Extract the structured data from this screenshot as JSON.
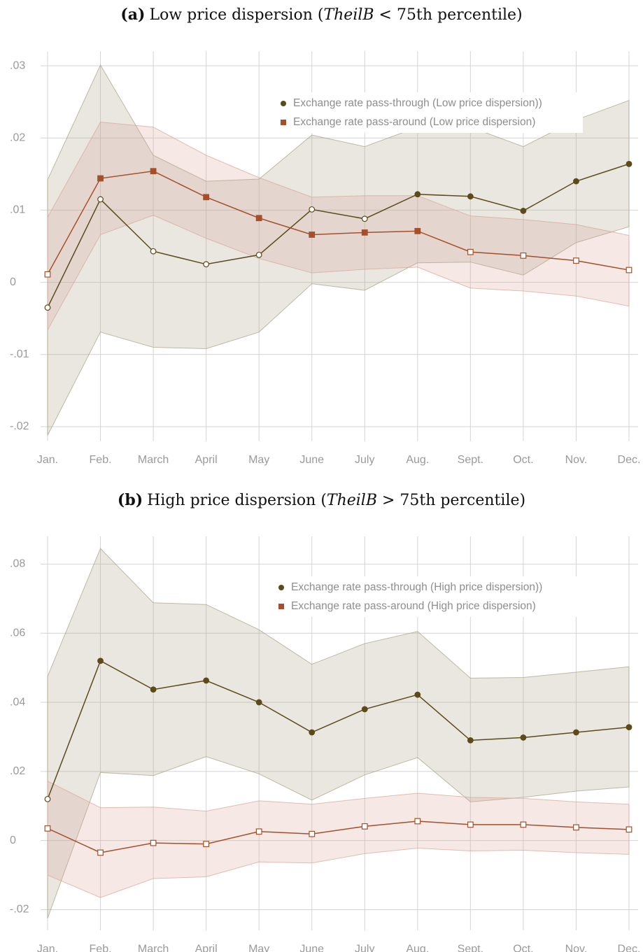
{
  "chart_data": [
    {
      "type": "line",
      "panel_label": "(a)",
      "title_parts": [
        "Low price dispersion (",
        "TheilB",
        " < 75th percentile)"
      ],
      "categories": [
        "Jan.",
        "Feb.",
        "March",
        "April",
        "May",
        "June",
        "July",
        "Aug.",
        "Sept.",
        "Oct.",
        "Nov.",
        "Dec."
      ],
      "ylim": [
        -0.022,
        0.032
      ],
      "yticks": [
        {
          "value": -0.02,
          "label": "-.02"
        },
        {
          "value": -0.01,
          "label": "-.01"
        },
        0,
        {
          "value": 0.01,
          "label": ".01"
        },
        {
          "value": 0.02,
          "label": ".02"
        },
        {
          "value": 0.03,
          "label": ".03"
        }
      ],
      "grid": true,
      "legend": "upper right",
      "series": [
        {
          "name": "Exchange rate pass-through (Low price dispersion))",
          "marker": "circle",
          "color": "#5c4a1a",
          "band_color": "#a89f85",
          "values": [
            -0.0035,
            0.0115,
            0.0043,
            0.0025,
            0.0038,
            0.0101,
            0.0088,
            0.0122,
            0.0119,
            0.0099,
            0.014,
            0.0164
          ],
          "upper": [
            0.0142,
            0.0301,
            0.0176,
            0.014,
            0.0143,
            0.0204,
            0.0188,
            0.0215,
            0.0215,
            0.0188,
            0.0225,
            0.0252
          ],
          "lower": [
            -0.0212,
            -0.0069,
            -0.009,
            -0.0092,
            -0.0069,
            -0.0002,
            -0.0011,
            0.0027,
            0.0028,
            0.001,
            0.0055,
            0.0077
          ],
          "filled": [
            false,
            false,
            false,
            false,
            false,
            false,
            false,
            true,
            true,
            true,
            true,
            true
          ]
        },
        {
          "name": "Exchange rate pass-around (Low price dispersion)",
          "marker": "square",
          "color": "#a5502a",
          "band_color": "#d9a596",
          "values": [
            0.0011,
            0.0144,
            0.0154,
            0.0118,
            0.0089,
            0.0066,
            0.0069,
            0.0071,
            0.0042,
            0.0037,
            0.003,
            0.0017
          ],
          "upper": [
            0.009,
            0.0222,
            0.0215,
            0.0176,
            0.0145,
            0.0118,
            0.012,
            0.012,
            0.0092,
            0.0087,
            0.008,
            0.0065
          ],
          "lower": [
            -0.0066,
            0.0066,
            0.0093,
            0.0061,
            0.0033,
            0.0013,
            0.0018,
            0.0021,
            -0.0008,
            -0.0012,
            -0.0019,
            -0.0033
          ],
          "filled": [
            false,
            true,
            true,
            true,
            true,
            true,
            true,
            true,
            false,
            false,
            false,
            false
          ]
        }
      ]
    },
    {
      "type": "line",
      "panel_label": "(b)",
      "title_parts": [
        "High price dispersion (",
        "TheilB",
        " > 75th percentile)"
      ],
      "categories": [
        "Jan.",
        "Feb.",
        "March",
        "April",
        "May",
        "June",
        "July",
        "Aug.",
        "Sept.",
        "Oct.",
        "Nov.",
        "Dec."
      ],
      "ylim": [
        -0.026,
        0.088
      ],
      "yticks": [
        {
          "value": -0.02,
          "label": "-.02"
        },
        0,
        {
          "value": 0.02,
          "label": ".02"
        },
        {
          "value": 0.04,
          "label": ".04"
        },
        {
          "value": 0.06,
          "label": ".06"
        },
        {
          "value": 0.08,
          "label": ".08"
        }
      ],
      "grid": true,
      "legend": "upper right",
      "series": [
        {
          "name": "Exchange rate pass-through (High price dispersion))",
          "marker": "circle",
          "color": "#5c4a1a",
          "band_color": "#a89f85",
          "values": [
            0.012,
            0.052,
            0.0437,
            0.0463,
            0.04,
            0.0313,
            0.038,
            0.0422,
            0.029,
            0.0298,
            0.0313,
            0.0328
          ],
          "upper": [
            0.0475,
            0.0845,
            0.0688,
            0.0683,
            0.061,
            0.051,
            0.057,
            0.0605,
            0.047,
            0.0472,
            0.0487,
            0.0503
          ],
          "lower": [
            -0.0225,
            0.0197,
            0.0188,
            0.0243,
            0.0193,
            0.0117,
            0.019,
            0.024,
            0.0112,
            0.0125,
            0.0143,
            0.0155
          ],
          "filled": [
            false,
            true,
            true,
            true,
            true,
            true,
            true,
            true,
            true,
            true,
            true,
            true
          ]
        },
        {
          "name": "Exchange rate pass-around (High price dispersion)",
          "marker": "square",
          "color": "#a5502a",
          "band_color": "#d9a596",
          "values": [
            0.0035,
            -0.0035,
            -0.0007,
            -0.001,
            0.0026,
            0.0019,
            0.0041,
            0.0056,
            0.0046,
            0.0046,
            0.0038,
            0.0032
          ],
          "upper": [
            0.0172,
            0.0095,
            0.0097,
            0.0085,
            0.0115,
            0.0105,
            0.0122,
            0.0137,
            0.0125,
            0.0122,
            0.0112,
            0.0105
          ],
          "lower": [
            -0.01,
            -0.0165,
            -0.011,
            -0.0105,
            -0.0062,
            -0.0065,
            -0.0038,
            -0.0022,
            -0.003,
            -0.0028,
            -0.0035,
            -0.004
          ],
          "filled": [
            false,
            false,
            false,
            false,
            false,
            false,
            false,
            false,
            false,
            false,
            false,
            false
          ]
        }
      ]
    }
  ]
}
